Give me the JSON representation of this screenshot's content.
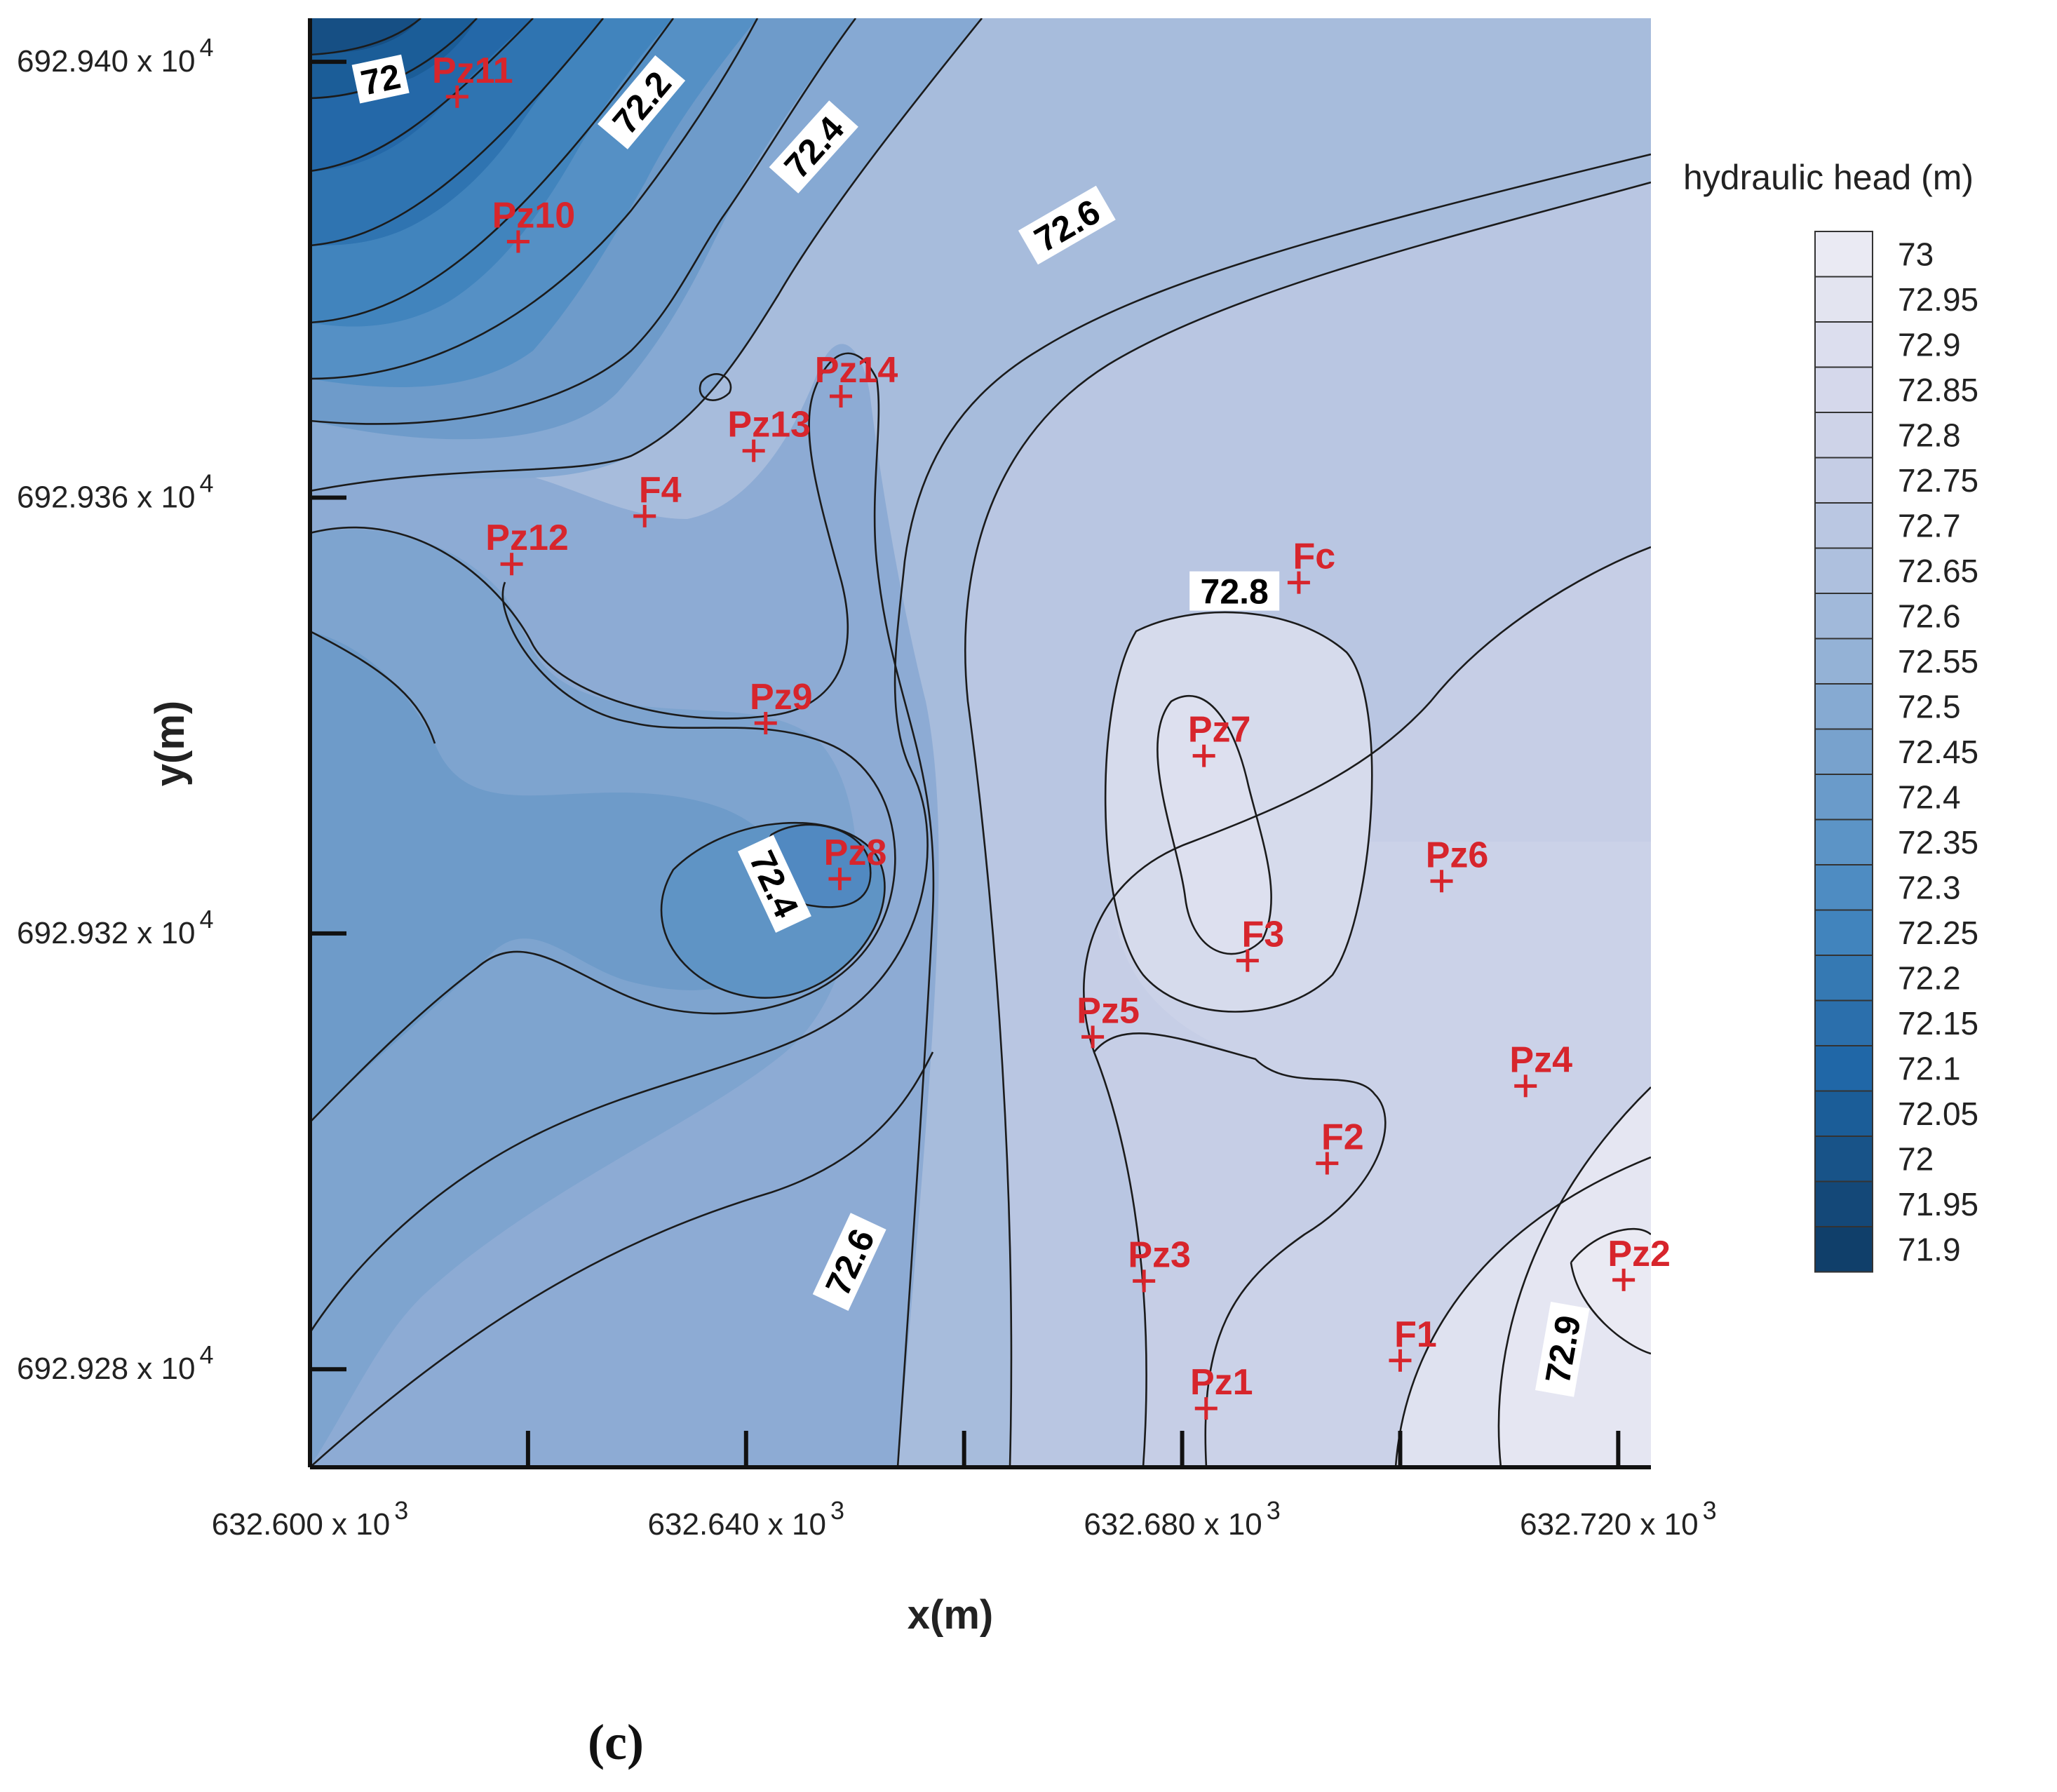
{
  "chart_data": {
    "type": "contour",
    "title": "",
    "xlabel": "x(m)",
    "ylabel": "y(m)",
    "x_ticks": [
      {
        "value": 632600,
        "label": "632.600 x 10",
        "exp": "3"
      },
      {
        "value": 632640,
        "label": "632.640 x 10",
        "exp": "3"
      },
      {
        "value": 632680,
        "label": "632.680 x 10",
        "exp": "3"
      },
      {
        "value": 632720,
        "label": "632.720 x 10",
        "exp": "3"
      }
    ],
    "y_ticks": [
      {
        "value": 6929400,
        "label": "692.940 x 10",
        "exp": "4"
      },
      {
        "value": 6929360,
        "label": "692.936 x 10",
        "exp": "4"
      },
      {
        "value": 6929320,
        "label": "692.932 x 10",
        "exp": "4"
      },
      {
        "value": 6929280,
        "label": "692.928 x 10",
        "exp": "4"
      }
    ],
    "xlim": [
      632600,
      632723
    ],
    "ylim": [
      6929271,
      6929404
    ],
    "legend": {
      "title": "hydraulic head (m)",
      "placement": "right",
      "levels": [
        "73",
        "72.95",
        "72.9",
        "72.85",
        "72.8",
        "72.75",
        "72.7",
        "72.65",
        "72.6",
        "72.55",
        "72.5",
        "72.45",
        "72.4",
        "72.35",
        "72.3",
        "72.25",
        "72.2",
        "72.15",
        "72.1",
        "72.05",
        "72",
        "71.95",
        "71.9"
      ],
      "colors": [
        "#eaeaf3",
        "#e3e4f0",
        "#dcdeee",
        "#d5d8eb",
        "#ced3e8",
        "#c5cde5",
        "#bac7e2",
        "#aec0de",
        "#a1b9da",
        "#94b2d6",
        "#86aad2",
        "#78a2cd",
        "#6a9bca",
        "#5c94c6",
        "#4e8cc2",
        "#4184bd",
        "#3579b3",
        "#2b6fac",
        "#2067a7",
        "#1b5d98",
        "#185388",
        "#144878",
        "#103f6a"
      ]
    },
    "contour_labels": [
      {
        "text": "72",
        "x": 632606.5,
        "y": 6929398.3,
        "angle": -12
      },
      {
        "text": "72.2",
        "x": 632630.5,
        "y": 6929396.2,
        "angle": -50
      },
      {
        "text": "72.4",
        "x": 632646.3,
        "y": 6929392.1,
        "angle": -48
      },
      {
        "text": "72.6",
        "x": 632669.5,
        "y": 6929384.9,
        "angle": -30
      },
      {
        "text": "72.8",
        "x": 632684.8,
        "y": 6929351.3,
        "angle": 0
      },
      {
        "text": "72.4",
        "x": 632642.5,
        "y": 6929324.5,
        "angle": 65
      },
      {
        "text": "72.6",
        "x": 632649.6,
        "y": 6929289.8,
        "angle": -65
      },
      {
        "text": "72.9",
        "x": 632715.0,
        "y": 6929281.8,
        "angle": -80
      }
    ],
    "wells": [
      {
        "name": "Pz11",
        "x": 632613.5,
        "y": 6929396.8
      },
      {
        "name": "Pz10",
        "x": 632619.1,
        "y": 6929383.5
      },
      {
        "name": "Pz14",
        "x": 632648.7,
        "y": 6929369.3
      },
      {
        "name": "Pz13",
        "x": 632640.7,
        "y": 6929364.3
      },
      {
        "name": "F4",
        "x": 632630.7,
        "y": 6929358.3
      },
      {
        "name": "Pz12",
        "x": 632618.5,
        "y": 6929353.9
      },
      {
        "name": "Fc",
        "x": 632690.7,
        "y": 6929352.2
      },
      {
        "name": "Pz9",
        "x": 632641.8,
        "y": 6929339.3
      },
      {
        "name": "Pz7",
        "x": 632682.0,
        "y": 6929336.3
      },
      {
        "name": "Pz8",
        "x": 632648.6,
        "y": 6929325.0
      },
      {
        "name": "Pz6",
        "x": 632703.8,
        "y": 6929324.8
      },
      {
        "name": "F3",
        "x": 632686.0,
        "y": 6929317.5
      },
      {
        "name": "Pz5",
        "x": 632671.8,
        "y": 6929310.5
      },
      {
        "name": "Pz4",
        "x": 632711.5,
        "y": 6929306.0
      },
      {
        "name": "F2",
        "x": 632693.3,
        "y": 6929298.9
      },
      {
        "name": "Pz3",
        "x": 632676.5,
        "y": 6929288.1
      },
      {
        "name": "Pz2",
        "x": 632720.5,
        "y": 6929288.2
      },
      {
        "name": "F1",
        "x": 632700.0,
        "y": 6929280.8
      },
      {
        "name": "Pz1",
        "x": 632682.2,
        "y": 6929276.4
      }
    ]
  },
  "panel_label": "(c)"
}
